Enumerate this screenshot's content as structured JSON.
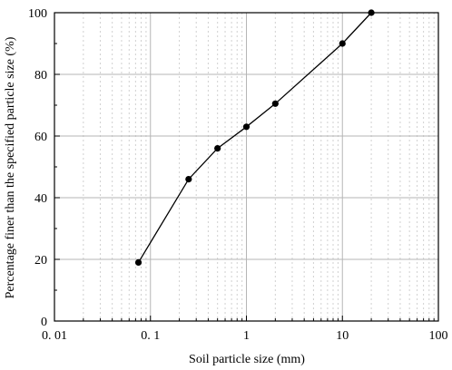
{
  "chart_data": {
    "type": "line",
    "xlabel": "Soil particle size (mm)",
    "ylabel": "Percentage finer than the specified particle size (%)",
    "x_scale": "log",
    "xlim": [
      0.01,
      100
    ],
    "ylim": [
      0,
      100
    ],
    "x_ticks": [
      0.01,
      0.1,
      1,
      10,
      100
    ],
    "x_tick_labels": [
      "0. 01",
      "0. 1",
      "1",
      "10",
      "100"
    ],
    "y_ticks": [
      0,
      20,
      40,
      60,
      80,
      100
    ],
    "y_tick_labels": [
      "0",
      "20",
      "40",
      "60",
      "80",
      "100"
    ],
    "grid": true,
    "series": [
      {
        "x": [
          0.075,
          0.25,
          0.5,
          1,
          2,
          10,
          20
        ],
        "y": [
          19,
          46,
          56,
          63,
          70.5,
          90,
          100
        ]
      }
    ],
    "colors": {
      "line": "#000000",
      "grid_major": "#b5b5b5",
      "grid_minor": "#d0d0d0"
    }
  }
}
